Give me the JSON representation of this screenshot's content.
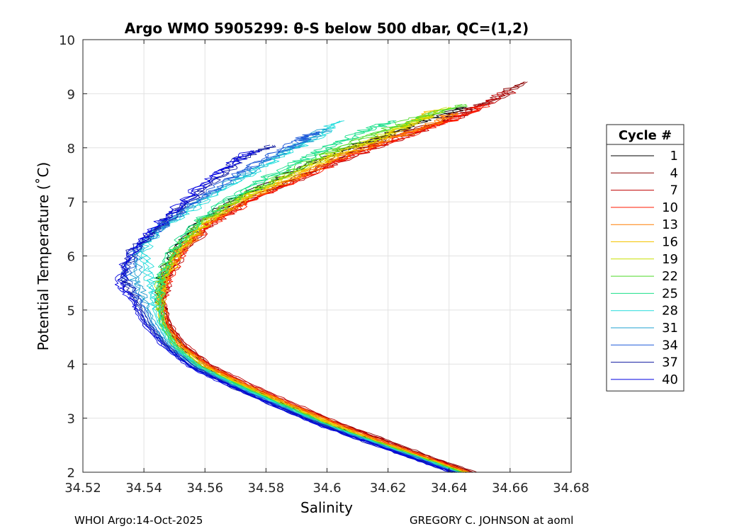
{
  "chart_data": {
    "type": "line",
    "title": "Argo WMO 5905299: θ-S below 500 dbar,  QC=(1,2)",
    "xlabel": "Salinity",
    "ylabel": "Potential Temperature (˚C)",
    "xlim": [
      34.52,
      34.68
    ],
    "ylim": [
      2,
      10
    ],
    "xticks": [
      "34.52",
      "34.54",
      "34.56",
      "34.58",
      "34.6",
      "34.62",
      "34.64",
      "34.66",
      "34.68"
    ],
    "yticks": [
      "2",
      "3",
      "4",
      "5",
      "6",
      "7",
      "8",
      "9",
      "10"
    ],
    "grid": true,
    "legend": {
      "title": "Cycle #",
      "placement": "right-outside",
      "entries": [
        {
          "label": "1",
          "color": "#000000"
        },
        {
          "label": "4",
          "color": "#8b0000"
        },
        {
          "label": "7",
          "color": "#c00000"
        },
        {
          "label": "10",
          "color": "#ff1a00"
        },
        {
          "label": "13",
          "color": "#ff7f00"
        },
        {
          "label": "16",
          "color": "#f5c400"
        },
        {
          "label": "19",
          "color": "#c8e000"
        },
        {
          "label": "22",
          "color": "#4fd92a"
        },
        {
          "label": "25",
          "color": "#19e08a"
        },
        {
          "label": "28",
          "color": "#22dcdc"
        },
        {
          "label": "31",
          "color": "#1fa0d0"
        },
        {
          "label": "34",
          "color": "#1e5ad8"
        },
        {
          "label": "37",
          "color": "#101aa0"
        },
        {
          "label": "40",
          "color": "#0000e0"
        }
      ]
    },
    "series": [
      {
        "name": "1",
        "color": "#000000",
        "points": [
          [
            34.645,
            2.0
          ],
          [
            34.63,
            2.3
          ],
          [
            34.615,
            2.6
          ],
          [
            34.6,
            2.9
          ],
          [
            34.586,
            3.25
          ],
          [
            34.572,
            3.6
          ],
          [
            34.56,
            3.95
          ],
          [
            34.552,
            4.35
          ],
          [
            34.547,
            4.75
          ],
          [
            34.545,
            5.2
          ],
          [
            34.546,
            5.6
          ],
          [
            34.55,
            6.1
          ],
          [
            34.558,
            6.6
          ],
          [
            34.57,
            7.05
          ],
          [
            34.585,
            7.45
          ],
          [
            34.6,
            7.85
          ],
          [
            34.615,
            8.15
          ],
          [
            34.63,
            8.45
          ],
          [
            34.645,
            8.75
          ]
        ]
      },
      {
        "name": "4",
        "color": "#8b0000",
        "points": [
          [
            34.648,
            2.0
          ],
          [
            34.633,
            2.3
          ],
          [
            34.618,
            2.62
          ],
          [
            34.603,
            2.92
          ],
          [
            34.588,
            3.25
          ],
          [
            34.574,
            3.6
          ],
          [
            34.562,
            3.95
          ],
          [
            34.553,
            4.35
          ],
          [
            34.548,
            4.75
          ],
          [
            34.546,
            5.2
          ],
          [
            34.547,
            5.6
          ],
          [
            34.552,
            6.1
          ],
          [
            34.561,
            6.6
          ],
          [
            34.574,
            7.05
          ],
          [
            34.59,
            7.45
          ],
          [
            34.605,
            7.85
          ],
          [
            34.622,
            8.2
          ],
          [
            34.64,
            8.55
          ],
          [
            34.655,
            8.9
          ],
          [
            34.665,
            9.22
          ]
        ]
      },
      {
        "name": "7",
        "color": "#c00000",
        "points": [
          [
            34.647,
            2.0
          ],
          [
            34.632,
            2.3
          ],
          [
            34.617,
            2.62
          ],
          [
            34.603,
            2.93
          ],
          [
            34.589,
            3.27
          ],
          [
            34.575,
            3.62
          ],
          [
            34.562,
            3.97
          ],
          [
            34.553,
            4.37
          ],
          [
            34.548,
            4.77
          ],
          [
            34.546,
            5.2
          ],
          [
            34.548,
            5.6
          ],
          [
            34.553,
            6.1
          ],
          [
            34.562,
            6.6
          ],
          [
            34.575,
            7.05
          ],
          [
            34.592,
            7.45
          ],
          [
            34.608,
            7.85
          ],
          [
            34.625,
            8.2
          ],
          [
            34.645,
            8.6
          ],
          [
            34.66,
            9.05
          ]
        ]
      },
      {
        "name": "10",
        "color": "#ff1a00",
        "points": [
          [
            34.646,
            2.0
          ],
          [
            34.631,
            2.3
          ],
          [
            34.616,
            2.6
          ],
          [
            34.602,
            2.92
          ],
          [
            34.588,
            3.26
          ],
          [
            34.574,
            3.6
          ],
          [
            34.561,
            3.96
          ],
          [
            34.552,
            4.36
          ],
          [
            34.547,
            4.76
          ],
          [
            34.546,
            5.2
          ],
          [
            34.548,
            5.6
          ],
          [
            34.553,
            6.1
          ],
          [
            34.562,
            6.6
          ],
          [
            34.576,
            7.05
          ],
          [
            34.592,
            7.45
          ],
          [
            34.607,
            7.85
          ],
          [
            34.624,
            8.2
          ],
          [
            34.64,
            8.5
          ],
          [
            34.652,
            8.8
          ]
        ]
      },
      {
        "name": "13",
        "color": "#ff7f00",
        "points": [
          [
            34.646,
            2.0
          ],
          [
            34.631,
            2.3
          ],
          [
            34.616,
            2.61
          ],
          [
            34.602,
            2.92
          ],
          [
            34.588,
            3.26
          ],
          [
            34.574,
            3.6
          ],
          [
            34.561,
            3.96
          ],
          [
            34.552,
            4.36
          ],
          [
            34.547,
            4.76
          ],
          [
            34.546,
            5.2
          ],
          [
            34.547,
            5.6
          ],
          [
            34.552,
            6.1
          ],
          [
            34.561,
            6.6
          ],
          [
            34.574,
            7.05
          ],
          [
            34.59,
            7.45
          ],
          [
            34.605,
            7.85
          ],
          [
            34.62,
            8.15
          ],
          [
            34.635,
            8.45
          ],
          [
            34.642,
            8.65
          ]
        ]
      },
      {
        "name": "16",
        "color": "#f5c400",
        "points": [
          [
            34.645,
            2.0
          ],
          [
            34.63,
            2.3
          ],
          [
            34.615,
            2.6
          ],
          [
            34.601,
            2.91
          ],
          [
            34.587,
            3.25
          ],
          [
            34.573,
            3.6
          ],
          [
            34.56,
            3.95
          ],
          [
            34.551,
            4.35
          ],
          [
            34.546,
            4.75
          ],
          [
            34.545,
            5.2
          ],
          [
            34.547,
            5.6
          ],
          [
            34.552,
            6.1
          ],
          [
            34.56,
            6.6
          ],
          [
            34.572,
            7.05
          ],
          [
            34.588,
            7.45
          ],
          [
            34.603,
            7.85
          ],
          [
            34.618,
            8.2
          ],
          [
            34.63,
            8.5
          ],
          [
            34.636,
            8.7
          ]
        ]
      },
      {
        "name": "19",
        "color": "#c8e000",
        "points": [
          [
            34.644,
            2.0
          ],
          [
            34.629,
            2.3
          ],
          [
            34.614,
            2.6
          ],
          [
            34.6,
            2.91
          ],
          [
            34.586,
            3.25
          ],
          [
            34.572,
            3.6
          ],
          [
            34.559,
            3.95
          ],
          [
            34.55,
            4.35
          ],
          [
            34.546,
            4.75
          ],
          [
            34.545,
            5.2
          ],
          [
            34.546,
            5.6
          ],
          [
            34.551,
            6.1
          ],
          [
            34.559,
            6.6
          ],
          [
            34.571,
            7.05
          ],
          [
            34.586,
            7.45
          ],
          [
            34.601,
            7.85
          ],
          [
            34.615,
            8.15
          ],
          [
            34.628,
            8.45
          ],
          [
            34.64,
            8.75
          ]
        ]
      },
      {
        "name": "22",
        "color": "#4fd92a",
        "points": [
          [
            34.644,
            2.0
          ],
          [
            34.629,
            2.3
          ],
          [
            34.614,
            2.6
          ],
          [
            34.599,
            2.9
          ],
          [
            34.585,
            3.25
          ],
          [
            34.571,
            3.6
          ],
          [
            34.558,
            3.95
          ],
          [
            34.55,
            4.35
          ],
          [
            34.546,
            4.75
          ],
          [
            34.545,
            5.2
          ],
          [
            34.546,
            5.6
          ],
          [
            34.55,
            6.1
          ],
          [
            34.558,
            6.6
          ],
          [
            34.57,
            7.05
          ],
          [
            34.585,
            7.5
          ],
          [
            34.6,
            7.9
          ],
          [
            34.615,
            8.25
          ],
          [
            34.63,
            8.55
          ],
          [
            34.645,
            8.8
          ]
        ]
      },
      {
        "name": "25",
        "color": "#19e08a",
        "points": [
          [
            34.643,
            2.0
          ],
          [
            34.628,
            2.3
          ],
          [
            34.613,
            2.6
          ],
          [
            34.599,
            2.9
          ],
          [
            34.585,
            3.25
          ],
          [
            34.571,
            3.6
          ],
          [
            34.558,
            3.95
          ],
          [
            34.55,
            4.35
          ],
          [
            34.546,
            4.75
          ],
          [
            34.545,
            5.2
          ],
          [
            34.545,
            5.6
          ],
          [
            34.549,
            6.1
          ],
          [
            34.557,
            6.6
          ],
          [
            34.569,
            7.1
          ],
          [
            34.584,
            7.55
          ],
          [
            34.598,
            7.95
          ],
          [
            34.612,
            8.3
          ],
          [
            34.622,
            8.5
          ]
        ]
      },
      {
        "name": "28",
        "color": "#22dcdc",
        "points": [
          [
            34.643,
            2.0
          ],
          [
            34.628,
            2.3
          ],
          [
            34.613,
            2.6
          ],
          [
            34.598,
            2.9
          ],
          [
            34.584,
            3.25
          ],
          [
            34.57,
            3.6
          ],
          [
            34.558,
            3.95
          ],
          [
            34.549,
            4.35
          ],
          [
            34.545,
            4.75
          ],
          [
            34.543,
            5.2
          ],
          [
            34.542,
            5.6
          ],
          [
            34.54,
            6.1
          ],
          [
            34.545,
            6.5
          ],
          [
            34.555,
            6.85
          ],
          [
            34.568,
            7.3
          ],
          [
            34.582,
            7.75
          ],
          [
            34.595,
            8.15
          ],
          [
            34.605,
            8.5
          ]
        ]
      },
      {
        "name": "31",
        "color": "#1fa0d0",
        "points": [
          [
            34.642,
            2.0
          ],
          [
            34.627,
            2.3
          ],
          [
            34.612,
            2.6
          ],
          [
            34.598,
            2.9
          ],
          [
            34.583,
            3.25
          ],
          [
            34.569,
            3.6
          ],
          [
            34.557,
            3.95
          ],
          [
            34.548,
            4.35
          ],
          [
            34.543,
            4.75
          ],
          [
            34.54,
            5.2
          ],
          [
            34.537,
            5.6
          ],
          [
            34.538,
            6.1
          ],
          [
            34.546,
            6.55
          ],
          [
            34.556,
            6.95
          ],
          [
            34.568,
            7.35
          ],
          [
            34.58,
            7.75
          ],
          [
            34.592,
            8.1
          ],
          [
            34.6,
            8.35
          ]
        ]
      },
      {
        "name": "34",
        "color": "#1e5ad8",
        "points": [
          [
            34.642,
            2.0
          ],
          [
            34.627,
            2.3
          ],
          [
            34.612,
            2.6
          ],
          [
            34.597,
            2.9
          ],
          [
            34.583,
            3.25
          ],
          [
            34.569,
            3.6
          ],
          [
            34.556,
            3.95
          ],
          [
            34.547,
            4.35
          ],
          [
            34.542,
            4.75
          ],
          [
            34.538,
            5.2
          ],
          [
            34.534,
            5.6
          ],
          [
            34.537,
            6.1
          ],
          [
            34.545,
            6.5
          ],
          [
            34.555,
            6.95
          ],
          [
            34.566,
            7.35
          ],
          [
            34.578,
            7.75
          ],
          [
            34.59,
            8.1
          ],
          [
            34.597,
            8.3
          ]
        ]
      },
      {
        "name": "37",
        "color": "#101aa0",
        "points": [
          [
            34.641,
            2.0
          ],
          [
            34.626,
            2.3
          ],
          [
            34.611,
            2.6
          ],
          [
            34.597,
            2.9
          ],
          [
            34.582,
            3.25
          ],
          [
            34.568,
            3.6
          ],
          [
            34.556,
            3.95
          ],
          [
            34.547,
            4.35
          ],
          [
            34.541,
            4.75
          ],
          [
            34.537,
            5.2
          ],
          [
            34.533,
            5.6
          ],
          [
            34.536,
            6.1
          ],
          [
            34.544,
            6.5
          ],
          [
            34.553,
            6.95
          ],
          [
            34.563,
            7.4
          ],
          [
            34.572,
            7.8
          ],
          [
            34.582,
            8.05
          ]
        ]
      },
      {
        "name": "40",
        "color": "#0000e0",
        "points": [
          [
            34.641,
            2.0
          ],
          [
            34.626,
            2.3
          ],
          [
            34.611,
            2.6
          ],
          [
            34.596,
            2.9
          ],
          [
            34.582,
            3.25
          ],
          [
            34.568,
            3.6
          ],
          [
            34.555,
            3.95
          ],
          [
            34.546,
            4.35
          ],
          [
            34.54,
            4.75
          ],
          [
            34.536,
            5.2
          ],
          [
            34.532,
            5.5
          ],
          [
            34.535,
            6.0
          ],
          [
            34.542,
            6.45
          ],
          [
            34.551,
            6.9
          ],
          [
            34.56,
            7.35
          ],
          [
            34.568,
            7.7
          ],
          [
            34.576,
            7.95
          ]
        ]
      }
    ]
  },
  "footer": {
    "left": "WHOI Argo:14-Oct-2025",
    "right": "GREGORY C. JOHNSON at aoml"
  }
}
